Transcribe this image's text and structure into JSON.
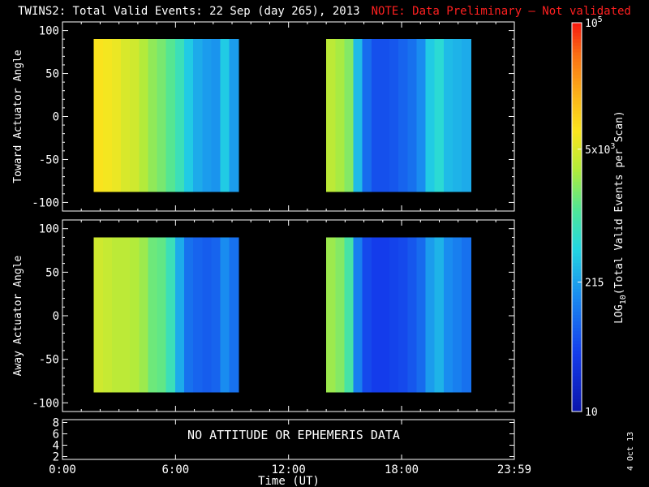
{
  "title": {
    "main": "TWINS2: Total Valid Events: 22 Sep (day 265), 2013",
    "note": "NOTE: Data Preliminary – Not validated",
    "note_color": "#ff2020"
  },
  "stamp": "4 Oct 13",
  "chart_data": [
    {
      "type": "heatmap",
      "name": "toward",
      "ylabel": "Toward Actuator Angle",
      "xlim": [
        "0:00",
        "23:59"
      ],
      "ylim": [
        -110,
        110
      ],
      "yticks": [
        "100",
        "50",
        "0",
        "-50",
        "-100"
      ],
      "data_blocks": [
        {
          "x_start": "1:40",
          "x_end": "9:20",
          "y_range": [
            -88,
            90
          ],
          "columns": [
            {
              "x": "1:40",
              "log_events": 3.9
            },
            {
              "x": "2:10",
              "log_events": 3.85
            },
            {
              "x": "2:40",
              "log_events": 3.8
            },
            {
              "x": "3:10",
              "log_events": 3.7
            },
            {
              "x": "3:40",
              "log_events": 3.65
            },
            {
              "x": "4:10",
              "log_events": 3.5
            },
            {
              "x": "4:40",
              "log_events": 3.35
            },
            {
              "x": "5:10",
              "log_events": 3.25
            },
            {
              "x": "5:40",
              "log_events": 3.1
            },
            {
              "x": "6:10",
              "log_events": 2.9
            },
            {
              "x": "6:40",
              "log_events": 2.6
            },
            {
              "x": "7:10",
              "log_events": 2.4
            },
            {
              "x": "7:40",
              "log_events": 2.3
            },
            {
              "x": "8:10",
              "log_events": 2.25
            },
            {
              "x": "8:40",
              "log_events": 2.6
            },
            {
              "x": "9:00",
              "log_events": 2.3
            }
          ]
        },
        {
          "x_start": "14:00",
          "x_end": "21:40",
          "y_range": [
            -88,
            90
          ],
          "columns": [
            {
              "x": "14:00",
              "log_events": 3.55
            },
            {
              "x": "14:30",
              "log_events": 3.45
            },
            {
              "x": "15:00",
              "log_events": 3.3
            },
            {
              "x": "15:30",
              "log_events": 2.5
            },
            {
              "x": "16:00",
              "log_events": 1.95
            },
            {
              "x": "16:30",
              "log_events": 1.75
            },
            {
              "x": "17:00",
              "log_events": 1.75
            },
            {
              "x": "17:30",
              "log_events": 1.8
            },
            {
              "x": "18:00",
              "log_events": 1.9
            },
            {
              "x": "18:30",
              "log_events": 2.0
            },
            {
              "x": "19:00",
              "log_events": 2.2
            },
            {
              "x": "19:30",
              "log_events": 2.6
            },
            {
              "x": "20:00",
              "log_events": 2.75
            },
            {
              "x": "20:30",
              "log_events": 2.5
            },
            {
              "x": "21:00",
              "log_events": 2.45
            },
            {
              "x": "21:20",
              "log_events": 2.4
            }
          ]
        }
      ]
    },
    {
      "type": "heatmap",
      "name": "away",
      "ylabel": "Away Actuator Angle",
      "xlim": [
        "0:00",
        "23:59"
      ],
      "ylim": [
        -110,
        110
      ],
      "yticks": [
        "100",
        "50",
        "0",
        "-50",
        "-100"
      ],
      "data_blocks": [
        {
          "x_start": "1:40",
          "x_end": "9:20",
          "y_range": [
            -88,
            90
          ],
          "columns": [
            {
              "x": "1:40",
              "log_events": 3.65
            },
            {
              "x": "2:10",
              "log_events": 3.6
            },
            {
              "x": "2:40",
              "log_events": 3.55
            },
            {
              "x": "3:10",
              "log_events": 3.55
            },
            {
              "x": "3:40",
              "log_events": 3.5
            },
            {
              "x": "4:10",
              "log_events": 3.4
            },
            {
              "x": "4:40",
              "log_events": 3.2
            },
            {
              "x": "5:10",
              "log_events": 3.15
            },
            {
              "x": "5:40",
              "log_events": 2.9
            },
            {
              "x": "6:10",
              "log_events": 2.4
            },
            {
              "x": "6:40",
              "log_events": 2.0
            },
            {
              "x": "7:10",
              "log_events": 1.9
            },
            {
              "x": "7:40",
              "log_events": 1.85
            },
            {
              "x": "8:10",
              "log_events": 1.9
            },
            {
              "x": "8:40",
              "log_events": 2.2
            },
            {
              "x": "9:00",
              "log_events": 2.0
            }
          ]
        },
        {
          "x_start": "14:00",
          "x_end": "21:40",
          "y_range": [
            -88,
            90
          ],
          "columns": [
            {
              "x": "14:00",
              "log_events": 3.4
            },
            {
              "x": "14:30",
              "log_events": 3.3
            },
            {
              "x": "15:00",
              "log_events": 3.0
            },
            {
              "x": "15:30",
              "log_events": 2.1
            },
            {
              "x": "16:00",
              "log_events": 1.7
            },
            {
              "x": "16:30",
              "log_events": 1.6
            },
            {
              "x": "17:00",
              "log_events": 1.6
            },
            {
              "x": "17:30",
              "log_events": 1.65
            },
            {
              "x": "18:00",
              "log_events": 1.7
            },
            {
              "x": "18:30",
              "log_events": 1.8
            },
            {
              "x": "19:00",
              "log_events": 1.95
            },
            {
              "x": "19:30",
              "log_events": 2.3
            },
            {
              "x": "20:00",
              "log_events": 2.45
            },
            {
              "x": "20:30",
              "log_events": 2.2
            },
            {
              "x": "21:00",
              "log_events": 2.1
            },
            {
              "x": "21:20",
              "log_events": 2.0
            }
          ]
        }
      ]
    },
    {
      "type": "line",
      "name": "attitude",
      "yticks": [
        "8",
        "6",
        "4",
        "2"
      ],
      "message": "NO ATTITUDE OR EPHEMERIS DATA"
    }
  ],
  "xaxis": {
    "label": "Time (UT)",
    "ticks": [
      "0:00",
      "6:00",
      "12:00",
      "18:00",
      "23:59"
    ]
  },
  "colorbar": {
    "label": "LOG10(Total Valid Events per Scan)",
    "label_parts": [
      "LOG",
      "10",
      "(Total Valid Events per Scan)"
    ],
    "range": [
      1,
      5
    ],
    "ticks": [
      {
        "value": 5,
        "base": "10",
        "exp": "5"
      },
      {
        "value": 3.699,
        "base": "5x10",
        "exp": "3"
      },
      {
        "value": 2.332,
        "text": "215"
      },
      {
        "value": 1,
        "text": "10"
      }
    ]
  }
}
